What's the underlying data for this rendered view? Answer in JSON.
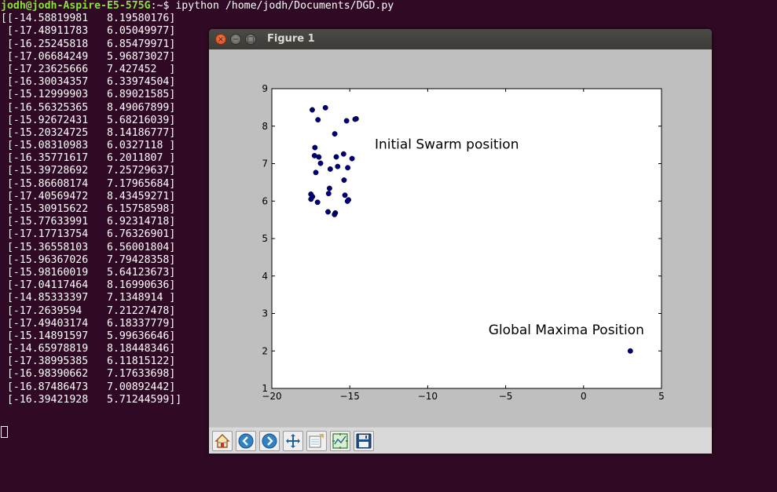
{
  "terminal": {
    "prompt_user": "jodh@jodh-Aspire-E5-575G",
    "prompt_sep": ":~$ ",
    "prompt_path_dummy": "",
    "command": "ipython /home/jodh/Documents/DGD.py",
    "output_lines": [
      "[[-14.58819981   8.19580176]",
      " [-17.48911783   6.05049977]",
      " [-16.25245818   6.85479971]",
      " [-17.06684249   5.96873027]",
      " [-17.23625666   7.427452  ]",
      " [-16.30034357   6.33974504]",
      " [-15.12999903   6.89021585]",
      " [-16.56325365   8.49067899]",
      " [-15.92672431   5.68216039]",
      " [-15.20324725   8.14186777]",
      " [-15.08310983   6.0327118 ]",
      " [-16.35771617   6.2011807 ]",
      " [-15.39728692   7.25729637]",
      " [-15.86608174   7.17965684]",
      " [-17.40569472   8.43459271]",
      " [-15.30915622   6.15758598]",
      " [-15.77633991   6.92314718]",
      " [-17.17713754   6.76326901]",
      " [-15.36558103   6.56001804]",
      " [-15.96367026   7.79428358]",
      " [-15.98160019   5.64123673]",
      " [-17.04117464   8.16990636]",
      " [-14.85333397   7.1348914 ]",
      " [-17.2639594    7.21227478]",
      " [-17.49403174   6.18337779]",
      " [-15.14891597   5.99636646]",
      " [-14.65978819   8.18448346]",
      " [-17.38995385   6.11815122]",
      " [-16.98390662   7.17633698]",
      " [-16.87486473   7.00892442]",
      " [-16.39421928   5.71244599]]"
    ]
  },
  "window": {
    "title": "Figure 1",
    "close_glyph": "×",
    "minimize_glyph": "−",
    "maximize_glyph": "□"
  },
  "chart_data": {
    "type": "scatter",
    "xlim": [
      -20,
      5
    ],
    "ylim": [
      1,
      9
    ],
    "x_ticks": [
      "−20",
      "−15",
      "−10",
      "−5",
      "0",
      "5"
    ],
    "x_tick_values": [
      -20,
      -15,
      -10,
      -5,
      0,
      5
    ],
    "y_ticks": [
      "1",
      "2",
      "3",
      "4",
      "5",
      "6",
      "7",
      "8",
      "9"
    ],
    "y_tick_values": [
      1,
      2,
      3,
      4,
      5,
      6,
      7,
      8,
      9
    ],
    "grid": false,
    "marker_color": "#00007f",
    "swarm_points": [
      [
        -14.58819981,
        8.19580176
      ],
      [
        -17.48911783,
        6.05049977
      ],
      [
        -16.25245818,
        6.85479971
      ],
      [
        -17.06684249,
        5.96873027
      ],
      [
        -17.23625666,
        7.427452
      ],
      [
        -16.30034357,
        6.33974504
      ],
      [
        -15.12999903,
        6.89021585
      ],
      [
        -16.56325365,
        8.49067899
      ],
      [
        -15.92672431,
        5.68216039
      ],
      [
        -15.20324725,
        8.14186777
      ],
      [
        -15.08310983,
        6.0327118
      ],
      [
        -16.35771617,
        6.2011807
      ],
      [
        -15.39728692,
        7.25729637
      ],
      [
        -15.86608174,
        7.17965684
      ],
      [
        -17.40569472,
        8.43459271
      ],
      [
        -15.30915622,
        6.15758598
      ],
      [
        -15.77633991,
        6.92314718
      ],
      [
        -17.17713754,
        6.76326901
      ],
      [
        -15.36558103,
        6.56001804
      ],
      [
        -15.96367026,
        7.79428358
      ],
      [
        -15.98160019,
        5.64123673
      ],
      [
        -17.04117464,
        8.16990636
      ],
      [
        -14.85333397,
        7.1348914
      ],
      [
        -17.2639594,
        7.21227478
      ],
      [
        -17.49403174,
        6.18337779
      ],
      [
        -15.14891597,
        5.99636646
      ],
      [
        -14.65978819,
        8.18448346
      ],
      [
        -17.38995385,
        6.11815122
      ],
      [
        -16.98390662,
        7.17633698
      ],
      [
        -16.87486473,
        7.00892442
      ],
      [
        -16.39421928,
        5.71244599
      ]
    ],
    "maxima_point": [
      3,
      2
    ],
    "annotations": [
      {
        "text": "Initial Swarm position",
        "x": -13.4,
        "y": 7.4
      },
      {
        "text": "Global Maxima Position",
        "x": -6.1,
        "y": 2.45
      }
    ]
  },
  "toolbar": {
    "buttons": [
      {
        "name": "home-button",
        "icon": "home-icon"
      },
      {
        "name": "back-button",
        "icon": "back-arrow-icon"
      },
      {
        "name": "forward-button",
        "icon": "forward-arrow-icon"
      },
      {
        "name": "pan-button",
        "icon": "pan-move-icon"
      },
      {
        "name": "zoom-button",
        "icon": "zoom-rect-icon"
      },
      {
        "name": "subplots-button",
        "icon": "subplots-icon"
      },
      {
        "name": "save-button",
        "icon": "floppy-save-icon"
      }
    ]
  }
}
